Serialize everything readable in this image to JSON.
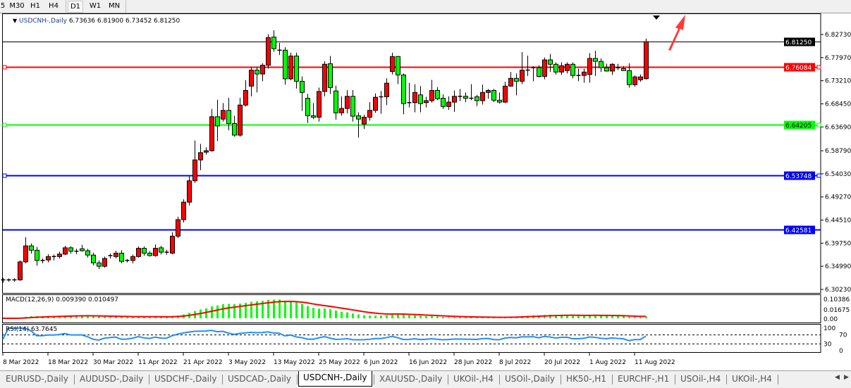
{
  "toolbar": {
    "timeframes": [
      "5",
      "M30",
      "H1",
      "H4",
      "D1",
      "W1",
      "MN"
    ],
    "active": "D1"
  },
  "chart": {
    "symbol": "USDCNH-,Daily",
    "ohlc_text": "6.73636 6.81900 6.73452 6.81250",
    "bull_color": "#ff0000",
    "bear_color": "#00ff00",
    "price_ticks": [
      "6.82730",
      "6.77970",
      "6.73210",
      "6.68450",
      "6.63690",
      "6.58790",
      "6.54030",
      "6.49270",
      "6.44510",
      "6.39750",
      "6.34990",
      "6.30230"
    ],
    "price_min": 6.3023,
    "price_max": 6.8273,
    "date_labels": [
      "8 Mar 2022",
      "18 Mar 2022",
      "30 Mar 2022",
      "11 Apr 2022",
      "21 Apr 2022",
      "3 May 2022",
      "13 May 2022",
      "25 May 2022",
      "6 Jun 2022",
      "16 Jun 2022",
      "28 Jun 2022",
      "8 Jul 2022",
      "20 Jul 2022",
      "1 Aug 2022",
      "11 Aug 2022"
    ],
    "hlines": [
      {
        "price": 6.8125,
        "label": "6.81250",
        "color": "#000000"
      },
      {
        "price": 6.76084,
        "label": "6.76084",
        "color": "#ff0000"
      },
      {
        "price": 6.64205,
        "label": "6.64205",
        "color": "#00ff00"
      },
      {
        "price": 6.53748,
        "label": "6.53748",
        "color": "#0000ff"
      },
      {
        "price": 6.42581,
        "label": "6.42581",
        "color": "#0000ff"
      }
    ],
    "candles": [
      [
        6.321,
        6.326,
        6.316,
        6.322
      ],
      [
        6.321,
        6.325,
        6.318,
        6.322
      ],
      [
        6.321,
        6.325,
        6.318,
        6.322
      ],
      [
        6.322,
        6.362,
        6.32,
        6.359
      ],
      [
        6.359,
        6.41,
        6.356,
        6.392
      ],
      [
        6.392,
        6.397,
        6.376,
        6.383
      ],
      [
        6.383,
        6.39,
        6.351,
        6.362
      ],
      [
        6.362,
        6.366,
        6.356,
        6.362
      ],
      [
        6.363,
        6.375,
        6.358,
        6.37
      ],
      [
        6.37,
        6.374,
        6.362,
        6.37
      ],
      [
        6.37,
        6.38,
        6.366,
        6.375
      ],
      [
        6.375,
        6.392,
        6.373,
        6.388
      ],
      [
        6.388,
        6.391,
        6.376,
        6.381
      ],
      [
        6.381,
        6.386,
        6.375,
        6.381
      ],
      [
        6.386,
        6.394,
        6.38,
        6.382
      ],
      [
        6.382,
        6.386,
        6.368,
        6.373
      ],
      [
        6.373,
        6.378,
        6.352,
        6.357
      ],
      [
        6.357,
        6.362,
        6.344,
        6.35
      ],
      [
        6.35,
        6.37,
        6.347,
        6.366
      ],
      [
        6.372,
        6.376,
        6.366,
        6.372
      ],
      [
        6.37,
        6.382,
        6.366,
        6.377
      ],
      [
        6.377,
        6.383,
        6.356,
        6.36
      ],
      [
        6.362,
        6.365,
        6.358,
        6.362
      ],
      [
        6.362,
        6.374,
        6.356,
        6.37
      ],
      [
        6.37,
        6.391,
        6.368,
        6.387
      ],
      [
        6.387,
        6.391,
        6.372,
        6.377
      ],
      [
        6.377,
        6.381,
        6.37,
        6.372
      ],
      [
        6.372,
        6.395,
        6.37,
        6.387
      ],
      [
        6.388,
        6.392,
        6.374,
        6.379
      ],
      [
        6.379,
        6.384,
        6.374,
        6.377
      ],
      [
        6.377,
        6.42,
        6.375,
        6.412
      ],
      [
        6.412,
        6.452,
        6.408,
        6.446
      ],
      [
        6.446,
        6.488,
        6.44,
        6.482
      ],
      [
        6.482,
        6.535,
        6.475,
        6.526
      ],
      [
        6.526,
        6.609,
        6.522,
        6.569
      ],
      [
        6.569,
        6.602,
        6.548,
        6.584
      ],
      [
        6.585,
        6.595,
        6.58,
        6.588
      ],
      [
        6.588,
        6.674,
        6.586,
        6.658
      ],
      [
        6.658,
        6.693,
        6.608,
        6.639
      ],
      [
        6.653,
        6.686,
        6.648,
        6.671
      ],
      [
        6.671,
        6.697,
        6.63,
        6.644
      ],
      [
        6.644,
        6.66,
        6.617,
        6.62
      ],
      [
        6.62,
        6.697,
        6.617,
        6.682
      ],
      [
        6.682,
        6.733,
        6.679,
        6.712
      ],
      [
        6.721,
        6.76,
        6.7,
        6.754
      ],
      [
        6.754,
        6.76,
        6.708,
        6.746
      ],
      [
        6.746,
        6.768,
        6.731,
        6.764
      ],
      [
        6.764,
        6.828,
        6.757,
        6.821
      ],
      [
        6.822,
        6.836,
        6.792,
        6.798
      ],
      [
        6.793,
        6.81,
        6.785,
        6.795
      ],
      [
        6.795,
        6.801,
        6.724,
        6.736
      ],
      [
        6.736,
        6.79,
        6.733,
        6.783
      ],
      [
        6.783,
        6.79,
        6.716,
        6.731
      ],
      [
        6.731,
        6.741,
        6.67,
        6.708
      ],
      [
        6.696,
        6.705,
        6.645,
        6.66
      ],
      [
        6.66,
        6.686,
        6.653,
        6.657
      ],
      [
        6.657,
        6.718,
        6.648,
        6.71
      ],
      [
        6.71,
        6.772,
        6.7,
        6.766
      ],
      [
        6.767,
        6.783,
        6.705,
        6.718
      ],
      [
        6.711,
        6.722,
        6.652,
        6.666
      ],
      [
        6.666,
        6.7,
        6.66,
        6.675
      ],
      [
        6.675,
        6.713,
        6.665,
        6.7
      ],
      [
        6.7,
        6.713,
        6.648,
        6.659
      ],
      [
        6.66,
        6.667,
        6.615,
        6.653
      ],
      [
        6.643,
        6.662,
        6.633,
        6.657
      ],
      [
        6.657,
        6.688,
        6.65,
        6.671
      ],
      [
        6.671,
        6.706,
        6.666,
        6.698
      ],
      [
        6.699,
        6.711,
        6.664,
        6.699
      ],
      [
        6.699,
        6.737,
        6.682,
        6.727
      ],
      [
        6.751,
        6.79,
        6.745,
        6.782
      ],
      [
        6.782,
        6.783,
        6.725,
        6.744
      ],
      [
        6.744,
        6.747,
        6.663,
        6.685
      ],
      [
        6.685,
        6.728,
        6.677,
        6.687
      ],
      [
        6.687,
        6.725,
        6.667,
        6.708
      ],
      [
        6.703,
        6.721,
        6.667,
        6.685
      ],
      [
        6.687,
        6.699,
        6.677,
        6.691
      ],
      [
        6.691,
        6.734,
        6.687,
        6.712
      ],
      [
        6.712,
        6.719,
        6.692,
        6.695
      ],
      [
        6.696,
        6.704,
        6.674,
        6.679
      ],
      [
        6.679,
        6.7,
        6.672,
        6.688
      ],
      [
        6.688,
        6.712,
        6.668,
        6.7
      ],
      [
        6.7,
        6.715,
        6.69,
        6.7
      ],
      [
        6.7,
        6.708,
        6.688,
        6.696
      ],
      [
        6.696,
        6.725,
        6.692,
        6.696
      ],
      [
        6.699,
        6.703,
        6.68,
        6.691
      ],
      [
        6.691,
        6.724,
        6.683,
        6.708
      ],
      [
        6.708,
        6.715,
        6.695,
        6.712
      ],
      [
        6.712,
        6.715,
        6.688,
        6.692
      ],
      [
        6.692,
        6.708,
        6.685,
        6.688
      ],
      [
        6.688,
        6.73,
        6.686,
        6.721
      ],
      [
        6.721,
        6.75,
        6.72,
        6.737
      ],
      [
        6.737,
        6.747,
        6.702,
        6.731
      ],
      [
        6.731,
        6.791,
        6.725,
        6.754
      ],
      [
        6.754,
        6.784,
        6.742,
        6.754
      ],
      [
        6.759,
        6.762,
        6.731,
        6.759
      ],
      [
        6.759,
        6.764,
        6.739,
        6.741
      ],
      [
        6.741,
        6.78,
        6.735,
        6.775
      ],
      [
        6.775,
        6.787,
        6.75,
        6.766
      ],
      [
        6.766,
        6.77,
        6.745,
        6.75
      ],
      [
        6.75,
        6.77,
        6.744,
        6.763
      ],
      [
        6.753,
        6.77,
        6.747,
        6.766
      ],
      [
        6.766,
        6.77,
        6.737,
        6.743
      ],
      [
        6.743,
        6.757,
        6.731,
        6.743
      ],
      [
        6.743,
        6.757,
        6.728,
        6.75
      ],
      [
        6.745,
        6.789,
        6.728,
        6.778
      ],
      [
        6.778,
        6.794,
        6.742,
        6.772
      ],
      [
        6.772,
        6.778,
        6.75,
        6.759
      ],
      [
        6.759,
        6.767,
        6.751,
        6.752
      ],
      [
        6.752,
        6.768,
        6.744,
        6.766
      ],
      [
        6.759,
        6.767,
        6.754,
        6.759
      ],
      [
        6.757,
        6.762,
        6.752,
        6.753
      ],
      [
        6.753,
        6.768,
        6.718,
        6.724
      ],
      [
        6.724,
        6.743,
        6.72,
        6.74
      ],
      [
        6.734,
        6.745,
        6.73,
        6.74
      ],
      [
        6.73636,
        6.819,
        6.73452,
        6.8125
      ]
    ],
    "macd": {
      "label": "MACD(12,26,9) 0.009390 0.010497",
      "scale_top": "0.10386",
      "scale_mid": "0.01675",
      "scale_zero": "0.00",
      "hist_color": "#00ff00",
      "signal_color": "#ff0000"
    },
    "rsi": {
      "label": "RSI(14) 63.7645",
      "levels": [
        "100",
        "70",
        "30",
        "0"
      ],
      "color": "#1e90ff"
    }
  },
  "tabs": [
    {
      "label": "EURUSD-,Daily"
    },
    {
      "label": "AUDUSD-,Daily"
    },
    {
      "label": "USDCHF-,Daily"
    },
    {
      "label": "USDCAD-,Daily"
    },
    {
      "label": "USDCNH-,Daily",
      "active": true
    },
    {
      "label": "XAUUSD-,Daily"
    },
    {
      "label": "UKOil-,H4"
    },
    {
      "label": "USOil-,Daily"
    },
    {
      "label": "HK50-,H1"
    },
    {
      "label": "EURCHF-,H1"
    },
    {
      "label": "USOil-,H4"
    },
    {
      "label": "UKOil-,H4"
    }
  ],
  "annotation": {
    "arrow_color": "#ff3b3b"
  }
}
